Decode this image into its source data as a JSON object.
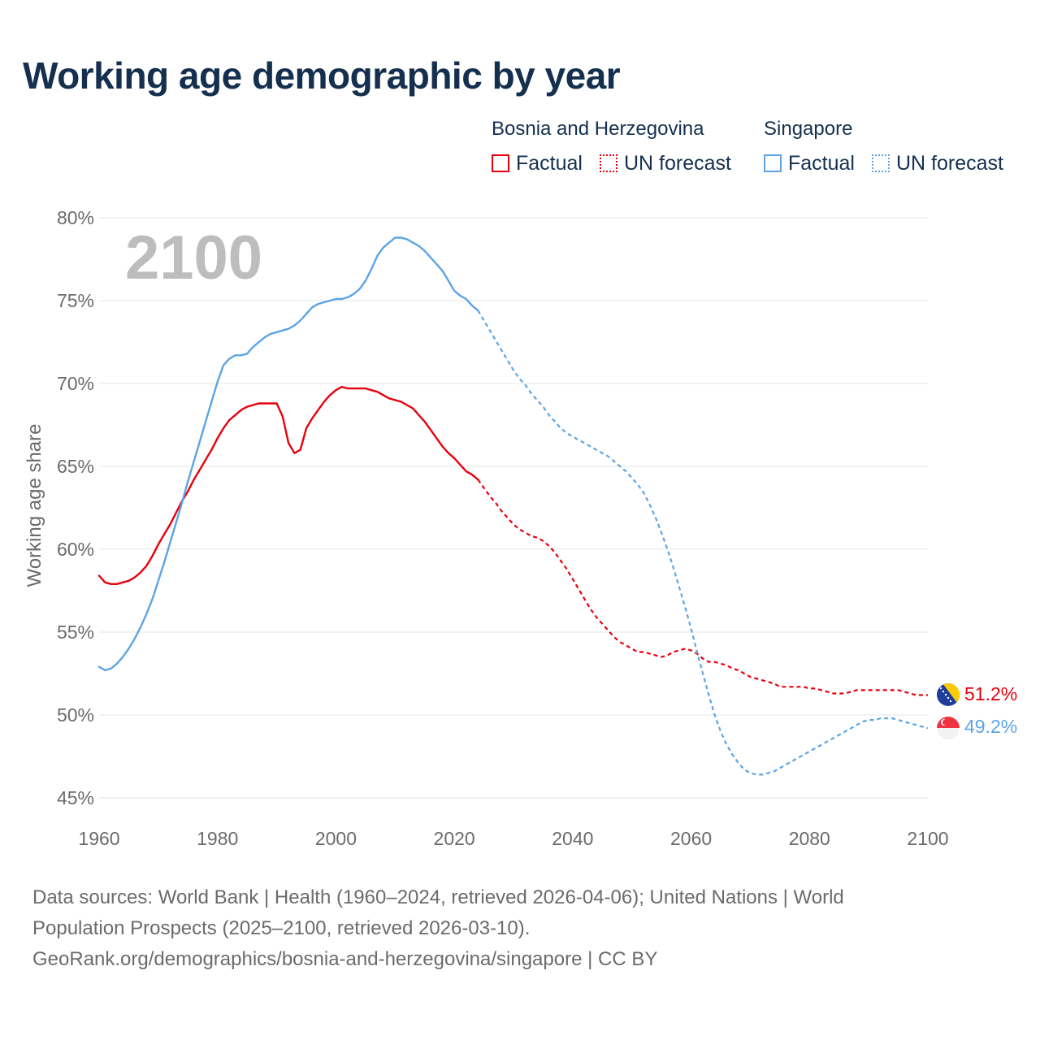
{
  "header": {
    "title": "Working age demographic by year"
  },
  "legend": {
    "groups": [
      {
        "country": "Bosnia and Herzegovina",
        "color": "#e8000d",
        "factual_label": "Factual",
        "forecast_label": "UN forecast"
      },
      {
        "country": "Singapore",
        "color": "#5da4e4",
        "factual_label": "Factual",
        "forecast_label": "UN forecast"
      }
    ]
  },
  "year_badge": "2100",
  "footer": {
    "line1": "Data sources: World Bank | Health (1960–2024, retrieved 2026-04-06); United Nations | World",
    "line2": "Population Prospects (2025–2100, retrieved 2026-03-10).",
    "line3": "GeoRank.org/demographics/bosnia-and-herzegovina/singapore | CC BY"
  },
  "chart_data": {
    "type": "line",
    "title": "Working age demographic by year",
    "xlabel": "",
    "ylabel": "Working age share",
    "xlim": [
      1960,
      2100
    ],
    "ylim": [
      45,
      80
    ],
    "x_ticks": [
      1960,
      1980,
      2000,
      2020,
      2040,
      2060,
      2080,
      2100
    ],
    "x_tick_labels": [
      "1960",
      "1980",
      "2000",
      "2020",
      "2040",
      "2060",
      "2080",
      "2100"
    ],
    "y_ticks": [
      45,
      50,
      55,
      60,
      65,
      70,
      75,
      80
    ],
    "y_tick_labels": [
      "45%",
      "50%",
      "55%",
      "60%",
      "65%",
      "70%",
      "75%",
      "80%"
    ],
    "factual_end_year": 2024,
    "grid": true,
    "series": [
      {
        "name": "Bosnia and Herzegovina",
        "color": "#e8000d",
        "end_label": "51.2%",
        "flag": "bosnia-and-herzegovina-flag-icon",
        "points": [
          [
            1960,
            58.4
          ],
          [
            1961,
            58.0
          ],
          [
            1962,
            57.9
          ],
          [
            1963,
            57.9
          ],
          [
            1964,
            58.0
          ],
          [
            1965,
            58.1
          ],
          [
            1966,
            58.3
          ],
          [
            1967,
            58.6
          ],
          [
            1968,
            59.0
          ],
          [
            1969,
            59.6
          ],
          [
            1970,
            60.3
          ],
          [
            1971,
            60.9
          ],
          [
            1972,
            61.5
          ],
          [
            1973,
            62.2
          ],
          [
            1974,
            62.9
          ],
          [
            1975,
            63.5
          ],
          [
            1976,
            64.2
          ],
          [
            1977,
            64.8
          ],
          [
            1978,
            65.4
          ],
          [
            1979,
            66.0
          ],
          [
            1980,
            66.7
          ],
          [
            1981,
            67.3
          ],
          [
            1982,
            67.8
          ],
          [
            1983,
            68.1
          ],
          [
            1984,
            68.4
          ],
          [
            1985,
            68.6
          ],
          [
            1986,
            68.7
          ],
          [
            1987,
            68.8
          ],
          [
            1988,
            68.8
          ],
          [
            1989,
            68.8
          ],
          [
            1990,
            68.8
          ],
          [
            1991,
            68.0
          ],
          [
            1992,
            66.4
          ],
          [
            1993,
            65.8
          ],
          [
            1994,
            66.0
          ],
          [
            1995,
            67.3
          ],
          [
            1996,
            67.9
          ],
          [
            1997,
            68.4
          ],
          [
            1998,
            68.9
          ],
          [
            1999,
            69.3
          ],
          [
            2000,
            69.6
          ],
          [
            2001,
            69.8
          ],
          [
            2002,
            69.7
          ],
          [
            2003,
            69.7
          ],
          [
            2004,
            69.7
          ],
          [
            2005,
            69.7
          ],
          [
            2006,
            69.6
          ],
          [
            2007,
            69.5
          ],
          [
            2008,
            69.3
          ],
          [
            2009,
            69.1
          ],
          [
            2010,
            69.0
          ],
          [
            2011,
            68.9
          ],
          [
            2012,
            68.7
          ],
          [
            2013,
            68.5
          ],
          [
            2014,
            68.1
          ],
          [
            2015,
            67.7
          ],
          [
            2016,
            67.2
          ],
          [
            2017,
            66.7
          ],
          [
            2018,
            66.2
          ],
          [
            2019,
            65.8
          ],
          [
            2020,
            65.5
          ],
          [
            2021,
            65.1
          ],
          [
            2022,
            64.7
          ],
          [
            2023,
            64.5
          ],
          [
            2024,
            64.2
          ],
          [
            2025,
            63.7
          ],
          [
            2026,
            63.2
          ],
          [
            2027,
            62.8
          ],
          [
            2028,
            62.3
          ],
          [
            2029,
            61.9
          ],
          [
            2030,
            61.5
          ],
          [
            2031,
            61.2
          ],
          [
            2032,
            61.0
          ],
          [
            2033,
            60.8
          ],
          [
            2034,
            60.7
          ],
          [
            2035,
            60.5
          ],
          [
            2036,
            60.2
          ],
          [
            2037,
            59.8
          ],
          [
            2038,
            59.3
          ],
          [
            2039,
            58.8
          ],
          [
            2040,
            58.2
          ],
          [
            2041,
            57.6
          ],
          [
            2042,
            57.0
          ],
          [
            2043,
            56.4
          ],
          [
            2044,
            55.9
          ],
          [
            2045,
            55.5
          ],
          [
            2046,
            55.1
          ],
          [
            2047,
            54.7
          ],
          [
            2048,
            54.4
          ],
          [
            2049,
            54.2
          ],
          [
            2050,
            54.0
          ],
          [
            2051,
            53.8
          ],
          [
            2052,
            53.8
          ],
          [
            2053,
            53.7
          ],
          [
            2054,
            53.6
          ],
          [
            2055,
            53.5
          ],
          [
            2056,
            53.6
          ],
          [
            2057,
            53.8
          ],
          [
            2058,
            53.9
          ],
          [
            2059,
            54.0
          ],
          [
            2060,
            53.9
          ],
          [
            2061,
            53.7
          ],
          [
            2062,
            53.4
          ],
          [
            2063,
            53.2
          ],
          [
            2064,
            53.2
          ],
          [
            2065,
            53.1
          ],
          [
            2066,
            53.0
          ],
          [
            2067,
            52.8
          ],
          [
            2068,
            52.7
          ],
          [
            2069,
            52.5
          ],
          [
            2070,
            52.3
          ],
          [
            2071,
            52.2
          ],
          [
            2072,
            52.1
          ],
          [
            2073,
            52.0
          ],
          [
            2074,
            51.9
          ],
          [
            2075,
            51.7
          ],
          [
            2076,
            51.7
          ],
          [
            2077,
            51.7
          ],
          [
            2078,
            51.7
          ],
          [
            2079,
            51.7
          ],
          [
            2080,
            51.6
          ],
          [
            2081,
            51.6
          ],
          [
            2082,
            51.5
          ],
          [
            2083,
            51.4
          ],
          [
            2084,
            51.3
          ],
          [
            2085,
            51.3
          ],
          [
            2086,
            51.3
          ],
          [
            2087,
            51.4
          ],
          [
            2088,
            51.5
          ],
          [
            2089,
            51.5
          ],
          [
            2090,
            51.5
          ],
          [
            2091,
            51.5
          ],
          [
            2092,
            51.5
          ],
          [
            2093,
            51.5
          ],
          [
            2094,
            51.5
          ],
          [
            2095,
            51.5
          ],
          [
            2096,
            51.4
          ],
          [
            2097,
            51.3
          ],
          [
            2098,
            51.2
          ],
          [
            2099,
            51.2
          ],
          [
            2100,
            51.2
          ]
        ]
      },
      {
        "name": "Singapore",
        "color": "#5da4e4",
        "end_label": "49.2%",
        "flag": "singapore-flag-icon",
        "points": [
          [
            1960,
            52.9
          ],
          [
            1961,
            52.7
          ],
          [
            1962,
            52.8
          ],
          [
            1963,
            53.1
          ],
          [
            1964,
            53.5
          ],
          [
            1965,
            54.0
          ],
          [
            1966,
            54.6
          ],
          [
            1967,
            55.3
          ],
          [
            1968,
            56.1
          ],
          [
            1969,
            57.0
          ],
          [
            1970,
            58.1
          ],
          [
            1971,
            59.2
          ],
          [
            1972,
            60.4
          ],
          [
            1973,
            61.6
          ],
          [
            1974,
            62.8
          ],
          [
            1975,
            64.1
          ],
          [
            1976,
            65.3
          ],
          [
            1977,
            66.5
          ],
          [
            1978,
            67.7
          ],
          [
            1979,
            68.9
          ],
          [
            1980,
            70.1
          ],
          [
            1981,
            71.1
          ],
          [
            1982,
            71.5
          ],
          [
            1983,
            71.7
          ],
          [
            1984,
            71.7
          ],
          [
            1985,
            71.8
          ],
          [
            1986,
            72.2
          ],
          [
            1987,
            72.5
          ],
          [
            1988,
            72.8
          ],
          [
            1989,
            73.0
          ],
          [
            1990,
            73.1
          ],
          [
            1991,
            73.2
          ],
          [
            1992,
            73.3
          ],
          [
            1993,
            73.5
          ],
          [
            1994,
            73.8
          ],
          [
            1995,
            74.2
          ],
          [
            1996,
            74.6
          ],
          [
            1997,
            74.8
          ],
          [
            1998,
            74.9
          ],
          [
            1999,
            75.0
          ],
          [
            2000,
            75.1
          ],
          [
            2001,
            75.1
          ],
          [
            2002,
            75.2
          ],
          [
            2003,
            75.4
          ],
          [
            2004,
            75.7
          ],
          [
            2005,
            76.2
          ],
          [
            2006,
            76.9
          ],
          [
            2007,
            77.7
          ],
          [
            2008,
            78.2
          ],
          [
            2009,
            78.5
          ],
          [
            2010,
            78.8
          ],
          [
            2011,
            78.8
          ],
          [
            2012,
            78.7
          ],
          [
            2013,
            78.5
          ],
          [
            2014,
            78.3
          ],
          [
            2015,
            78.0
          ],
          [
            2016,
            77.6
          ],
          [
            2017,
            77.2
          ],
          [
            2018,
            76.8
          ],
          [
            2019,
            76.2
          ],
          [
            2020,
            75.6
          ],
          [
            2021,
            75.3
          ],
          [
            2022,
            75.1
          ],
          [
            2023,
            74.7
          ],
          [
            2024,
            74.4
          ],
          [
            2025,
            73.8
          ],
          [
            2026,
            73.2
          ],
          [
            2027,
            72.6
          ],
          [
            2028,
            72.0
          ],
          [
            2029,
            71.4
          ],
          [
            2030,
            70.8
          ],
          [
            2031,
            70.3
          ],
          [
            2032,
            69.9
          ],
          [
            2033,
            69.4
          ],
          [
            2034,
            69.0
          ],
          [
            2035,
            68.6
          ],
          [
            2036,
            68.1
          ],
          [
            2037,
            67.7
          ],
          [
            2038,
            67.3
          ],
          [
            2039,
            67.0
          ],
          [
            2040,
            66.8
          ],
          [
            2041,
            66.6
          ],
          [
            2042,
            66.4
          ],
          [
            2043,
            66.2
          ],
          [
            2044,
            66.0
          ],
          [
            2045,
            65.8
          ],
          [
            2046,
            65.6
          ],
          [
            2047,
            65.3
          ],
          [
            2048,
            65.0
          ],
          [
            2049,
            64.7
          ],
          [
            2050,
            64.3
          ],
          [
            2051,
            63.9
          ],
          [
            2052,
            63.4
          ],
          [
            2053,
            62.7
          ],
          [
            2054,
            61.9
          ],
          [
            2055,
            61.0
          ],
          [
            2056,
            60.0
          ],
          [
            2057,
            58.9
          ],
          [
            2058,
            57.7
          ],
          [
            2059,
            56.5
          ],
          [
            2060,
            55.2
          ],
          [
            2061,
            53.8
          ],
          [
            2062,
            52.5
          ],
          [
            2063,
            51.2
          ],
          [
            2064,
            50.0
          ],
          [
            2065,
            49.0
          ],
          [
            2066,
            48.2
          ],
          [
            2067,
            47.6
          ],
          [
            2068,
            47.1
          ],
          [
            2069,
            46.7
          ],
          [
            2070,
            46.5
          ],
          [
            2071,
            46.4
          ],
          [
            2072,
            46.4
          ],
          [
            2073,
            46.5
          ],
          [
            2074,
            46.6
          ],
          [
            2075,
            46.8
          ],
          [
            2076,
            47.0
          ],
          [
            2077,
            47.2
          ],
          [
            2078,
            47.4
          ],
          [
            2079,
            47.6
          ],
          [
            2080,
            47.8
          ],
          [
            2081,
            48.0
          ],
          [
            2082,
            48.2
          ],
          [
            2083,
            48.4
          ],
          [
            2084,
            48.6
          ],
          [
            2085,
            48.8
          ],
          [
            2086,
            49.0
          ],
          [
            2087,
            49.2
          ],
          [
            2088,
            49.4
          ],
          [
            2089,
            49.6
          ],
          [
            2090,
            49.7
          ],
          [
            2091,
            49.7
          ],
          [
            2092,
            49.8
          ],
          [
            2093,
            49.8
          ],
          [
            2094,
            49.8
          ],
          [
            2095,
            49.7
          ],
          [
            2096,
            49.6
          ],
          [
            2097,
            49.5
          ],
          [
            2098,
            49.4
          ],
          [
            2099,
            49.3
          ],
          [
            2100,
            49.2
          ]
        ]
      }
    ]
  }
}
